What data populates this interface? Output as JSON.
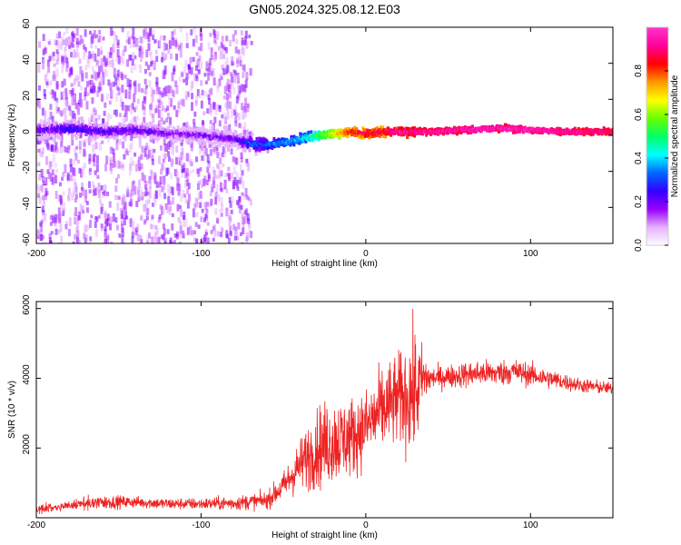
{
  "figure": {
    "title": "GN05.2024.325.08.12.E03"
  },
  "chart_data": [
    {
      "type": "heatmap",
      "title": "GN05.2024.325.08.12.E03",
      "xlabel": "Height of straight line (km)",
      "ylabel": "Frequency (Hz)",
      "xlim": [
        -200,
        150
      ],
      "ylim": [
        -60,
        60
      ],
      "x_ticks": [
        -200,
        -100,
        0,
        100
      ],
      "y_ticks": [
        -60,
        -40,
        -20,
        0,
        20,
        40,
        60
      ],
      "x_tick_labels": [
        "-200",
        "-100",
        "0",
        "100"
      ],
      "y_tick_labels": [
        "-60",
        "-40",
        "-20",
        "0",
        "20",
        "40",
        "60"
      ],
      "grid": false,
      "colorbar": {
        "label": "Normalized spectral amplitude",
        "range": [
          0,
          1
        ],
        "ticks": [
          0.0,
          0.2,
          0.4,
          0.6,
          0.8
        ],
        "tick_labels": [
          "0.0",
          "0.2",
          "0.4",
          "0.6",
          "0.8"
        ],
        "colormap": [
          "#ffffff",
          "#e6b3ff",
          "#9900ff",
          "#3300ff",
          "#0066ff",
          "#00ffff",
          "#00ff66",
          "#66ff00",
          "#ffff00",
          "#ff9900",
          "#ff0000",
          "#ff0099",
          "#ff33cc"
        ]
      },
      "ridge": {
        "x": [
          -200,
          -180,
          -160,
          -140,
          -120,
          -100,
          -80,
          -70,
          -60,
          -50,
          -40,
          -30,
          -20,
          -10,
          0,
          10,
          20,
          30,
          40,
          60,
          80,
          100,
          120,
          150
        ],
        "frequency_hz": [
          3,
          4,
          2,
          3,
          1,
          0,
          -2,
          -5,
          -5,
          -4,
          -2,
          0,
          1,
          2,
          1,
          2,
          2,
          2,
          2,
          3,
          4,
          3,
          2,
          2
        ],
        "amplitude": [
          0.22,
          0.28,
          0.25,
          0.24,
          0.2,
          0.2,
          0.22,
          0.35,
          0.35,
          0.38,
          0.42,
          0.55,
          0.7,
          0.85,
          0.9,
          0.9,
          0.95,
          0.95,
          0.95,
          0.98,
          0.98,
          0.98,
          0.95,
          0.92
        ]
      }
    },
    {
      "type": "line",
      "xlabel": "Height of straight line (km)",
      "ylabel": "SNR (10 * v/v)",
      "xlim": [
        -200,
        150
      ],
      "ylim": [
        0,
        6200
      ],
      "x_ticks": [
        -200,
        -100,
        0,
        100
      ],
      "y_ticks": [
        2000,
        4000,
        6000
      ],
      "x_tick_labels": [
        "-200",
        "-100",
        "0",
        "100"
      ],
      "y_tick_labels": [
        "2000",
        "4000",
        "6000"
      ],
      "grid": false,
      "color": "#ee2222",
      "envelope": {
        "x": [
          -200,
          -180,
          -160,
          -140,
          -120,
          -100,
          -80,
          -60,
          -50,
          -40,
          -30,
          -20,
          -10,
          0,
          10,
          20,
          30,
          35,
          40,
          50,
          60,
          70,
          80,
          90,
          100,
          110,
          120,
          130,
          140,
          150
        ],
        "mean": [
          250,
          350,
          450,
          450,
          400,
          400,
          420,
          500,
          900,
          1500,
          2000,
          2200,
          2300,
          2600,
          3100,
          3400,
          3600,
          4000,
          4000,
          4050,
          4100,
          4150,
          4150,
          4200,
          4100,
          4000,
          3900,
          3800,
          3750,
          3700
        ],
        "spread": [
          150,
          150,
          250,
          200,
          200,
          200,
          250,
          300,
          500,
          900,
          1400,
          1500,
          1400,
          1300,
          1500,
          1600,
          2200,
          1000,
          400,
          400,
          450,
          450,
          450,
          450,
          400,
          350,
          300,
          250,
          250,
          200
        ]
      }
    }
  ]
}
